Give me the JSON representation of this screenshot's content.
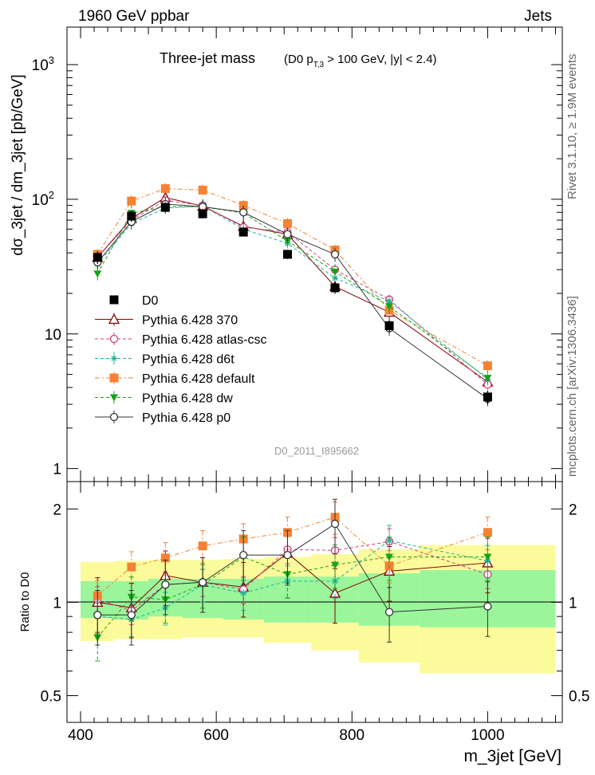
{
  "header": {
    "left": "1960 GeV ppbar",
    "right": "Jets",
    "title_main": "Three-jet mass",
    "title_cond_a": "(D0 p",
    "title_cond_sub": "T,3",
    "title_cond_b": " > 100 GeV, |y| < 2.4)",
    "side_rivet": "Rivet 3.1.10, ≥ 1.9M events",
    "side_mcplots": "mcplots.cern.ch [arXiv:1306.3436]",
    "watermark": "D0_2011_I895662"
  },
  "colors": {
    "band_inner": "#9bf59b",
    "band_outer": "#fbfb9b"
  },
  "chart_data": [
    {
      "id": "main",
      "type": "line",
      "ylabel": "dσ_3jet / dm_3jet [pb/GeV]",
      "yscale": "log",
      "ylim": [
        0.8,
        1900
      ],
      "xlim": [
        380,
        1110
      ],
      "y_ticks": [
        {
          "v": 1,
          "label": "1"
        },
        {
          "v": 10,
          "label": "10"
        },
        {
          "v": 100,
          "label": "10",
          "sup": "2"
        },
        {
          "v": 1000,
          "label": "10",
          "sup": "3"
        }
      ],
      "x": [
        425,
        475,
        525,
        580,
        640,
        705,
        775,
        855,
        1000
      ],
      "bins": [
        [
          400,
          450
        ],
        [
          450,
          500
        ],
        [
          500,
          550
        ],
        [
          550,
          610
        ],
        [
          610,
          670
        ],
        [
          670,
          740
        ],
        [
          740,
          810
        ],
        [
          810,
          900
        ],
        [
          900,
          1100
        ]
      ],
      "data": {
        "name": "D0",
        "values": [
          37,
          75,
          87,
          78,
          57,
          39,
          22,
          11.5,
          3.4
        ],
        "yerr_lo": [
          33,
          68,
          80,
          72,
          53,
          36,
          20,
          10.3,
          3.0
        ],
        "yerr_hi": [
          41,
          82,
          95,
          85,
          62,
          42,
          24,
          12.7,
          3.8
        ]
      },
      "series": [
        {
          "name": "Pythia 6.428 370",
          "color": "#800000",
          "marker": "triangle-open",
          "dash": "",
          "values": [
            37,
            72,
            103,
            89,
            63,
            55,
            22.5,
            14.5,
            4.4
          ],
          "err": 0.12
        },
        {
          "name": "Pythia 6.428 atlas-csc",
          "color": "#d43c7c",
          "marker": "circle-open",
          "dash": "4,3",
          "values": [
            37,
            70,
            98,
            90,
            62,
            57,
            30,
            18,
            4.2
          ],
          "err": 0.08
        },
        {
          "name": "Pythia 6.428 d6t",
          "color": "#1eb49a",
          "marker": "star",
          "dash": "4,3",
          "values": [
            33,
            66,
            86,
            89,
            60,
            47,
            26,
            17.5,
            4.6
          ],
          "err": 0.1
        },
        {
          "name": "Pythia 6.428 default",
          "color": "#f58232",
          "marker": "square",
          "dash": "6,3,2,3",
          "values": [
            39,
            97,
            120,
            117,
            90,
            66,
            42,
            15,
            5.8
          ],
          "err": 0.1
        },
        {
          "name": "Pythia 6.428 dw",
          "color": "#17a317",
          "marker": "triangle-down",
          "dash": "4,3",
          "values": [
            28,
            79,
            88,
            88,
            79,
            49,
            29,
            16,
            4.7
          ],
          "err": 0.14
        },
        {
          "name": "Pythia 6.428 p0",
          "color": "#333333",
          "marker": "circle-open",
          "dash": "",
          "values": [
            34,
            68,
            92,
            88,
            80,
            55,
            39,
            11,
            3.3
          ],
          "err": 0.12
        }
      ]
    },
    {
      "id": "ratio",
      "type": "line",
      "ylabel": "Ratio to D0",
      "xlabel": "m_3jet [GeV]",
      "yscale": "log",
      "ylim": [
        0.41,
        2.45
      ],
      "xlim": [
        380,
        1110
      ],
      "y_ticks": [
        {
          "v": 0.5,
          "label": "0.5"
        },
        {
          "v": 1,
          "label": "1"
        },
        {
          "v": 2,
          "label": "2"
        }
      ],
      "x_ticks": [
        {
          "v": 400,
          "label": "400"
        },
        {
          "v": 600,
          "label": "600"
        },
        {
          "v": 800,
          "label": "800"
        },
        {
          "v": 1000,
          "label": "1000"
        }
      ],
      "bins": [
        [
          400,
          450
        ],
        [
          450,
          500
        ],
        [
          500,
          550
        ],
        [
          550,
          610
        ],
        [
          610,
          670
        ],
        [
          670,
          740
        ],
        [
          740,
          810
        ],
        [
          810,
          900
        ],
        [
          900,
          1100
        ]
      ],
      "band_inner": [
        [
          0.89,
          1.17
        ],
        [
          0.88,
          1.17
        ],
        [
          0.9,
          1.19
        ],
        [
          0.89,
          1.19
        ],
        [
          0.88,
          1.19
        ],
        [
          0.86,
          1.21
        ],
        [
          0.86,
          1.21
        ],
        [
          0.84,
          1.24
        ],
        [
          0.83,
          1.27
        ]
      ],
      "band_outer": [
        [
          0.75,
          1.35
        ],
        [
          0.76,
          1.36
        ],
        [
          0.76,
          1.37
        ],
        [
          0.77,
          1.37
        ],
        [
          0.77,
          1.38
        ],
        [
          0.74,
          1.4
        ],
        [
          0.7,
          1.43
        ],
        [
          0.64,
          1.48
        ],
        [
          0.59,
          1.53
        ]
      ],
      "x": [
        425,
        475,
        525,
        580,
        640,
        705,
        775,
        855,
        1000
      ],
      "series": [
        {
          "name": "Pythia 6.428 370",
          "values": [
            1.0,
            0.96,
            1.22,
            1.16,
            1.12,
            1.44,
            1.07,
            1.26,
            1.34
          ],
          "err": 0.2
        },
        {
          "name": "Pythia 6.428 atlas-csc",
          "values": [
            1.02,
            0.94,
            1.14,
            1.16,
            1.1,
            1.48,
            1.47,
            1.57,
            1.23
          ],
          "err": 0.1
        },
        {
          "name": "Pythia 6.428 d6t",
          "values": [
            0.9,
            0.88,
            0.96,
            1.14,
            1.07,
            1.17,
            1.17,
            1.58,
            1.36
          ],
          "err": 0.12
        },
        {
          "name": "Pythia 6.428 default",
          "values": [
            1.05,
            1.3,
            1.39,
            1.52,
            1.6,
            1.68,
            1.88,
            1.31,
            1.68
          ],
          "err": 0.12
        },
        {
          "name": "Pythia 6.428 dw",
          "values": [
            0.77,
            1.04,
            1.02,
            1.14,
            1.4,
            1.23,
            1.32,
            1.4,
            1.4
          ],
          "err": 0.16
        },
        {
          "name": "Pythia 6.428 p0",
          "values": [
            0.91,
            0.91,
            1.14,
            1.16,
            1.42,
            1.42,
            1.79,
            0.93,
            0.97
          ],
          "err": 0.2
        }
      ]
    }
  ]
}
